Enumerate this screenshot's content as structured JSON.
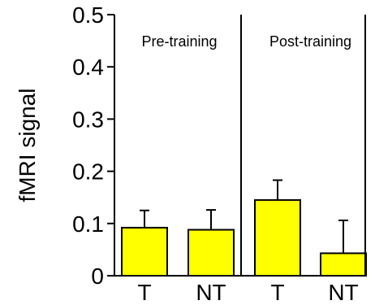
{
  "chart_data": {
    "type": "bar",
    "ylabel": "fMRI signal",
    "ylim": [
      0,
      0.5
    ],
    "yticks": [
      {
        "value": 0,
        "label": "0"
      },
      {
        "value": 0.1,
        "label": "0.1"
      },
      {
        "value": 0.2,
        "label": "0.2"
      },
      {
        "value": 0.3,
        "label": "0.3"
      },
      {
        "value": 0.4,
        "label": "0.4"
      },
      {
        "value": 0.5,
        "label": "0.5"
      }
    ],
    "panels": [
      "Pre-training",
      "Post-training"
    ],
    "categories": [
      "T",
      "NT",
      "T",
      "NT"
    ],
    "values": [
      0.092,
      0.088,
      0.145,
      0.043
    ],
    "errors": [
      0.033,
      0.038,
      0.038,
      0.063
    ],
    "bar_color": "#ffff00",
    "bar_edge_color": "#000000",
    "grid": false
  }
}
